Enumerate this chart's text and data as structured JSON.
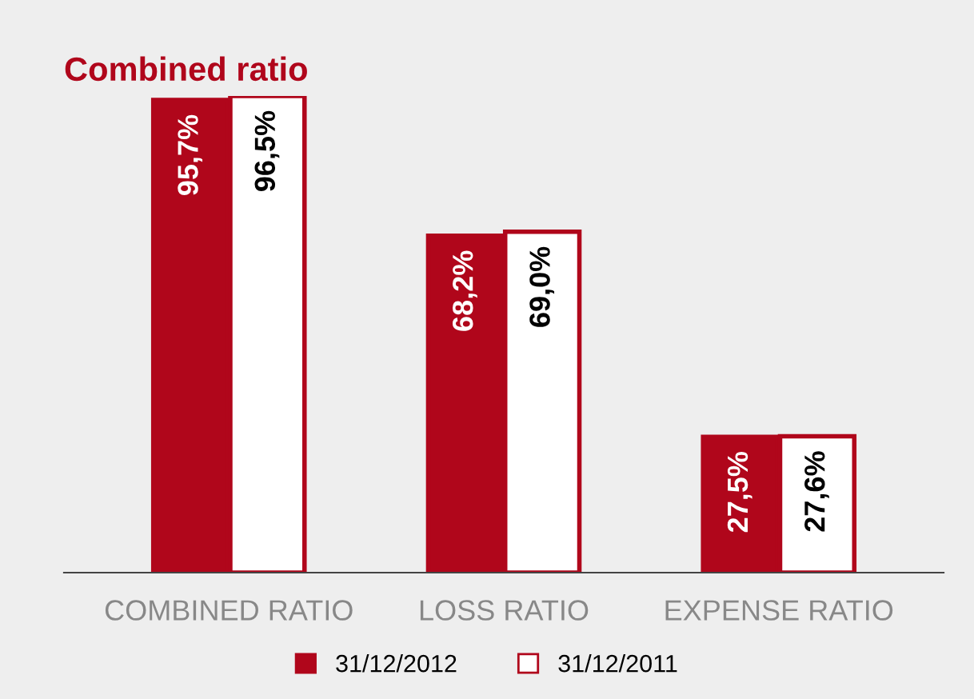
{
  "chart_data": {
    "type": "bar",
    "title": "Combined ratio",
    "categories": [
      "COMBINED RATIO",
      "LOSS RATIO",
      "EXPENSE RATIO"
    ],
    "series": [
      {
        "name": "31/12/2012",
        "color": "#b0061b",
        "values": [
          95.7,
          68.2,
          27.5
        ],
        "value_labels": [
          "95,7%",
          "68,2%",
          "27,5%"
        ]
      },
      {
        "name": "31/12/2011",
        "color": "#ffffff",
        "values": [
          96.5,
          69.0,
          27.6
        ],
        "value_labels": [
          "96,5%",
          "69,0%",
          "27,6%"
        ]
      }
    ],
    "legend": "bottom",
    "grid": false
  }
}
